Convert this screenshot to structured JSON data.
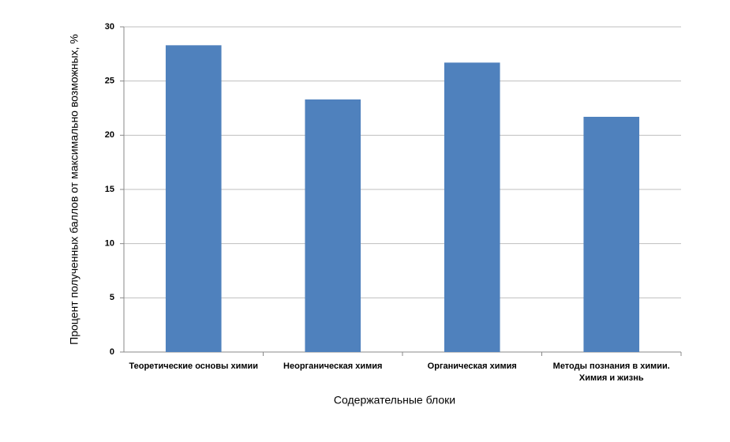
{
  "chart_data": {
    "type": "bar",
    "categories": [
      "Теоретические основы химии",
      "Неорганическая химия",
      "Органическая химия",
      "Методы познания в химии. Химия и жизнь"
    ],
    "values": [
      28.3,
      23.3,
      26.7,
      21.7
    ],
    "color": "#4f81bd",
    "ylim": [
      0,
      30
    ],
    "yticks": [
      0,
      5,
      10,
      15,
      20,
      25,
      30
    ],
    "grid": true,
    "x_label": "Содержательные  блоки",
    "y_label": "Процент полученных баллов от максимально возможных, %"
  }
}
